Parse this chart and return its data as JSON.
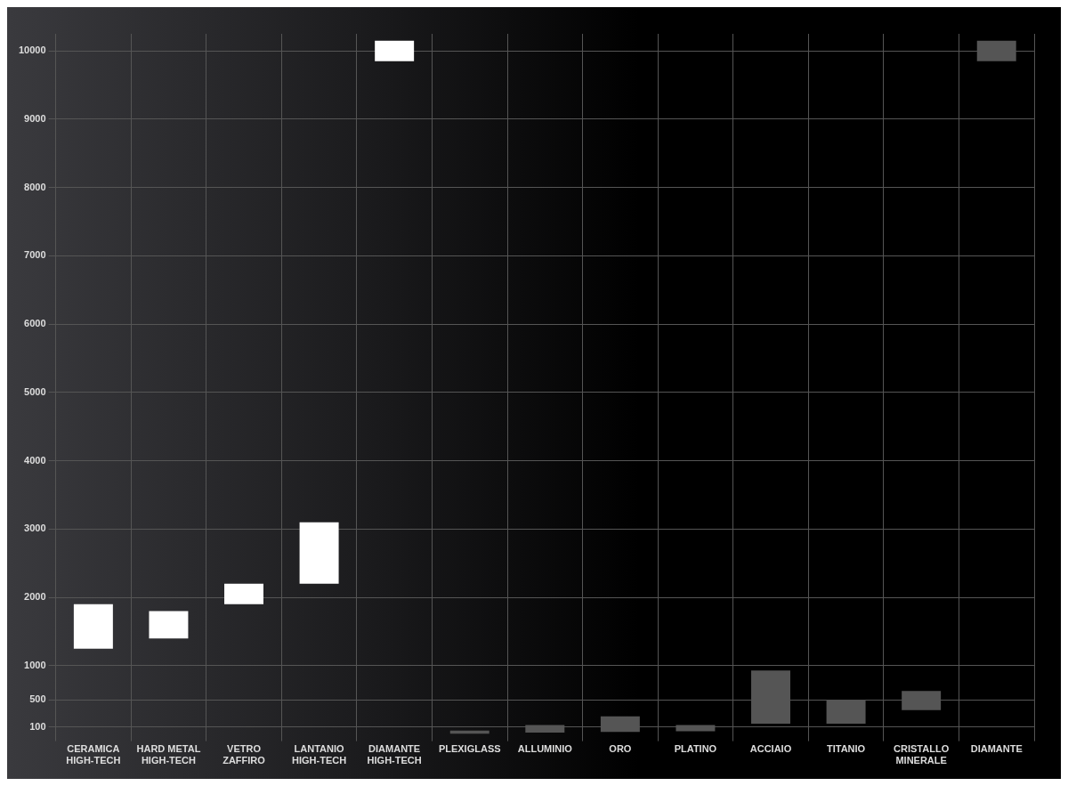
{
  "chart_data": {
    "type": "bar",
    "categories": [
      "CERAMICA\nHIGH-TECH",
      "HARD METAL\nHIGH-TECH",
      "VETRO\nZAFFIRO",
      "LANTANIO\nHIGH-TECH",
      "DIAMANTE\nHIGH-TECH",
      "PLEXIGLASS",
      "ALLUMINIO",
      "ORO",
      "PLATINO",
      "ACCIAIO",
      "TITANIO",
      "CRISTALLO\nMINERALE",
      "DIAMANTE"
    ],
    "base": [
      1250,
      1400,
      1900,
      2200,
      9850,
      0,
      20,
      30,
      40,
      150,
      150,
      350,
      9850
    ],
    "values": [
      650,
      400,
      300,
      900,
      300,
      50,
      110,
      230,
      90,
      780,
      350,
      280,
      300
    ],
    "colors": [
      "#ffffff",
      "#ffffff",
      "#ffffff",
      "#ffffff",
      "#ffffff",
      "#555555",
      "#555555",
      "#555555",
      "#555555",
      "#555555",
      "#555555",
      "#555555",
      "#555555"
    ],
    "ylim": [
      0,
      10250
    ],
    "yticks": [
      100,
      500,
      1000,
      2000,
      3000,
      4000,
      5000,
      6000,
      7000,
      8000,
      9000,
      10000
    ],
    "grid": true
  }
}
